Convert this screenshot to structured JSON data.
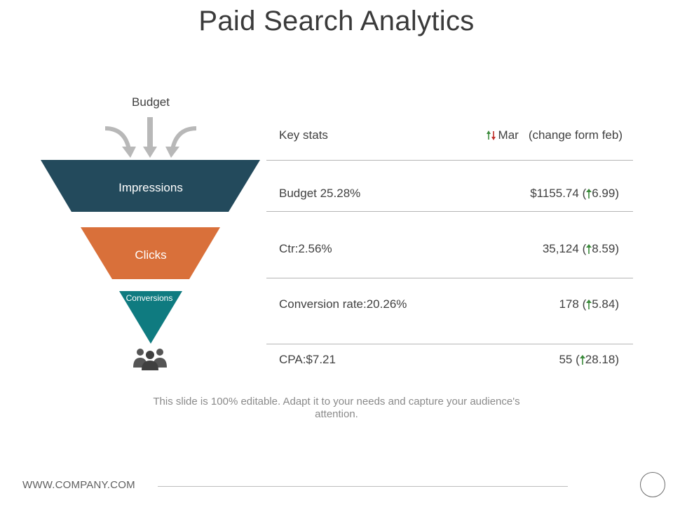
{
  "title": "Paid Search Analytics",
  "funnel": {
    "budget_label": "Budget",
    "stages": [
      {
        "label": "Impressions",
        "color": "#234a5c"
      },
      {
        "label": "Clicks",
        "color": "#d9703a"
      },
      {
        "label": "Conversions",
        "color": "#0f7b80"
      }
    ],
    "people_icon": "people-group-icon"
  },
  "table": {
    "header": {
      "key_stats": "Key stats",
      "month": "Mar",
      "change_note": "(change form feb)"
    },
    "rows": [
      {
        "stat": "Budget 25.28%",
        "value": "$1155.74",
        "change": "6.99"
      },
      {
        "stat": "Ctr:2.56%",
        "value": "35,124",
        "change": "8.59"
      },
      {
        "stat": "Conversion rate:20.26%",
        "value": "178",
        "change": "5.84"
      },
      {
        "stat": "CPA:$7.21",
        "value": "55",
        "change": "28.18"
      }
    ]
  },
  "caption": "This slide is 100% editable. Adapt it to your needs and capture your audience's attention.",
  "footer": {
    "url": "WWW.COMPANY.COM"
  },
  "colors": {
    "up": "#3a8a3a",
    "down": "#c0302a",
    "arrow_gray": "#b8b8b8"
  }
}
